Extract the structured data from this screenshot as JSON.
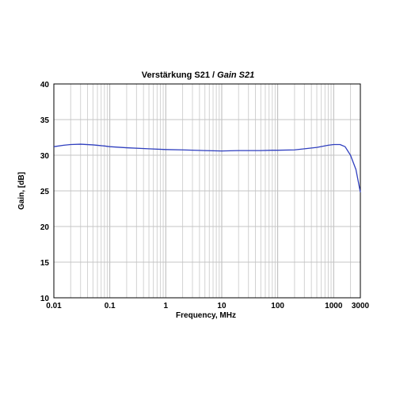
{
  "chart_data": {
    "type": "line",
    "title": "Verstärkung S21 / ",
    "title_italic": "Gain S21",
    "xlabel": "Frequency, MHz",
    "ylabel": "Gain, [dB]",
    "x_scale": "log",
    "xlim": [
      0.01,
      3000
    ],
    "ylim": [
      10,
      40
    ],
    "x_ticks": [
      0.01,
      0.1,
      1,
      10,
      100,
      1000,
      3000
    ],
    "x_tick_labels": [
      "0.01",
      "0.1",
      "1",
      "10",
      "100",
      "1000",
      "3000"
    ],
    "y_ticks": [
      10,
      15,
      20,
      25,
      30,
      35,
      40
    ],
    "y_tick_labels": [
      "10",
      "15",
      "20",
      "25",
      "30",
      "35",
      "40"
    ],
    "grid": true,
    "legend": "none",
    "series": [
      {
        "color": "#2f3fbf",
        "x": [
          0.01,
          0.015,
          0.02,
          0.03,
          0.05,
          0.08,
          0.1,
          0.2,
          0.5,
          1,
          2,
          5,
          10,
          20,
          50,
          80,
          100,
          200,
          300,
          500,
          800,
          1000,
          1300,
          1600,
          2000,
          2500,
          3000
        ],
        "y": [
          31.2,
          31.4,
          31.5,
          31.55,
          31.45,
          31.3,
          31.2,
          31.05,
          30.9,
          30.8,
          30.75,
          30.65,
          30.6,
          30.65,
          30.65,
          30.7,
          30.7,
          30.75,
          30.9,
          31.1,
          31.4,
          31.5,
          31.5,
          31.2,
          30.0,
          28.0,
          24.8
        ]
      }
    ]
  }
}
